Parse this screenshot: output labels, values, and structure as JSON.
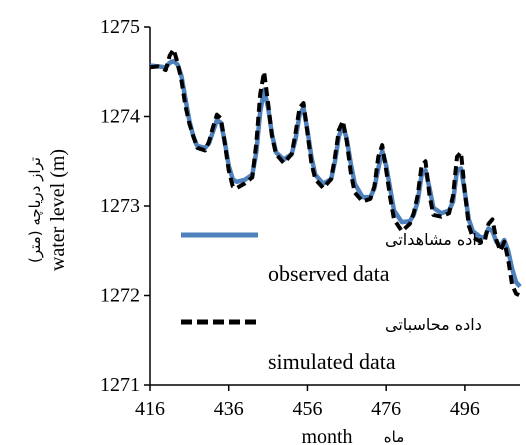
{
  "chart_data": {
    "type": "line",
    "xlabel": "month",
    "xlabel_fa": "ماه",
    "ylabel": "water level (m)",
    "ylabel_fa": "تراز دریاچه (متر)",
    "xlim": [
      416,
      510
    ],
    "ylim": [
      1271,
      1275
    ],
    "xticks": [
      "416",
      "436",
      "456",
      "476",
      "496"
    ],
    "yticks": [
      "1271",
      "1272",
      "1273",
      "1274",
      "1275"
    ],
    "grid": false,
    "legend_position": "bottom-left",
    "series": [
      {
        "name": "observed data",
        "name_fa": "داده مشاهداتی",
        "color": "#4f81bd",
        "style": "solid",
        "x": [
          416,
          418,
          420,
          421,
          422,
          423,
          424,
          425,
          426,
          427,
          428,
          430,
          431,
          432,
          433,
          434,
          435,
          436,
          437,
          438,
          440,
          442,
          443,
          444,
          445,
          446,
          447,
          448,
          450,
          452,
          453,
          454,
          455,
          456,
          457,
          458,
          460,
          462,
          463,
          464,
          465,
          466,
          467,
          468,
          470,
          472,
          473,
          474,
          475,
          476,
          477,
          478,
          480,
          482,
          483,
          484,
          485,
          486,
          487,
          488,
          490,
          492,
          493,
          494,
          495,
          496,
          497,
          498,
          500,
          501,
          502,
          503,
          504,
          505,
          506,
          507,
          508,
          509,
          510
        ],
        "y": [
          1274.57,
          1274.56,
          1274.55,
          1274.6,
          1274.62,
          1274.58,
          1274.45,
          1274.2,
          1273.95,
          1273.78,
          1273.67,
          1273.65,
          1273.7,
          1273.83,
          1273.96,
          1273.93,
          1273.72,
          1273.45,
          1273.3,
          1273.27,
          1273.29,
          1273.35,
          1273.6,
          1274.05,
          1274.3,
          1274.1,
          1273.8,
          1273.6,
          1273.52,
          1273.58,
          1273.75,
          1274.02,
          1274.1,
          1273.85,
          1273.55,
          1273.35,
          1273.25,
          1273.3,
          1273.5,
          1273.78,
          1273.9,
          1273.75,
          1273.48,
          1273.25,
          1273.1,
          1273.1,
          1273.2,
          1273.42,
          1273.62,
          1273.45,
          1273.2,
          1272.95,
          1272.82,
          1272.83,
          1272.9,
          1273.05,
          1273.35,
          1273.4,
          1273.2,
          1272.98,
          1272.92,
          1272.95,
          1273.05,
          1273.4,
          1273.42,
          1273.15,
          1272.85,
          1272.72,
          1272.65,
          1272.65,
          1272.75,
          1272.72,
          1272.6,
          1272.55,
          1272.62,
          1272.5,
          1272.3,
          1272.15,
          1272.1
        ]
      },
      {
        "name": "simulated data",
        "name_fa": "داده محاسباتی",
        "color": "#000000",
        "style": "dashed",
        "x": [
          416,
          418,
          420,
          421,
          422,
          423,
          424,
          425,
          426,
          427,
          428,
          430,
          431,
          432,
          433,
          434,
          435,
          436,
          437,
          438,
          440,
          442,
          443,
          444,
          445,
          446,
          447,
          448,
          450,
          452,
          453,
          454,
          455,
          456,
          457,
          458,
          460,
          462,
          463,
          464,
          465,
          466,
          467,
          468,
          470,
          472,
          473,
          474,
          475,
          476,
          477,
          478,
          480,
          482,
          483,
          484,
          485,
          486,
          487,
          488,
          490,
          492,
          493,
          494,
          495,
          496,
          497,
          498,
          500,
          501,
          502,
          503,
          504,
          505,
          506,
          507,
          508,
          509,
          510
        ],
        "y": [
          1274.55,
          1274.56,
          1274.52,
          1274.68,
          1274.75,
          1274.6,
          1274.4,
          1274.12,
          1273.92,
          1273.78,
          1273.65,
          1273.62,
          1273.72,
          1273.88,
          1274.02,
          1273.98,
          1273.7,
          1273.4,
          1273.22,
          1273.2,
          1273.25,
          1273.32,
          1273.7,
          1274.25,
          1274.5,
          1274.15,
          1273.78,
          1273.58,
          1273.48,
          1273.58,
          1273.82,
          1274.1,
          1274.15,
          1273.82,
          1273.48,
          1273.3,
          1273.2,
          1273.3,
          1273.55,
          1273.85,
          1273.95,
          1273.72,
          1273.38,
          1273.15,
          1273.05,
          1273.08,
          1273.22,
          1273.55,
          1273.68,
          1273.4,
          1273.1,
          1272.85,
          1272.72,
          1272.8,
          1272.92,
          1273.12,
          1273.45,
          1273.5,
          1273.12,
          1272.9,
          1272.88,
          1272.92,
          1273.12,
          1273.55,
          1273.6,
          1273.15,
          1272.78,
          1272.65,
          1272.6,
          1272.6,
          1272.8,
          1272.85,
          1272.62,
          1272.5,
          1272.6,
          1272.4,
          1272.12,
          1272.02,
          1272.0
        ]
      }
    ]
  }
}
